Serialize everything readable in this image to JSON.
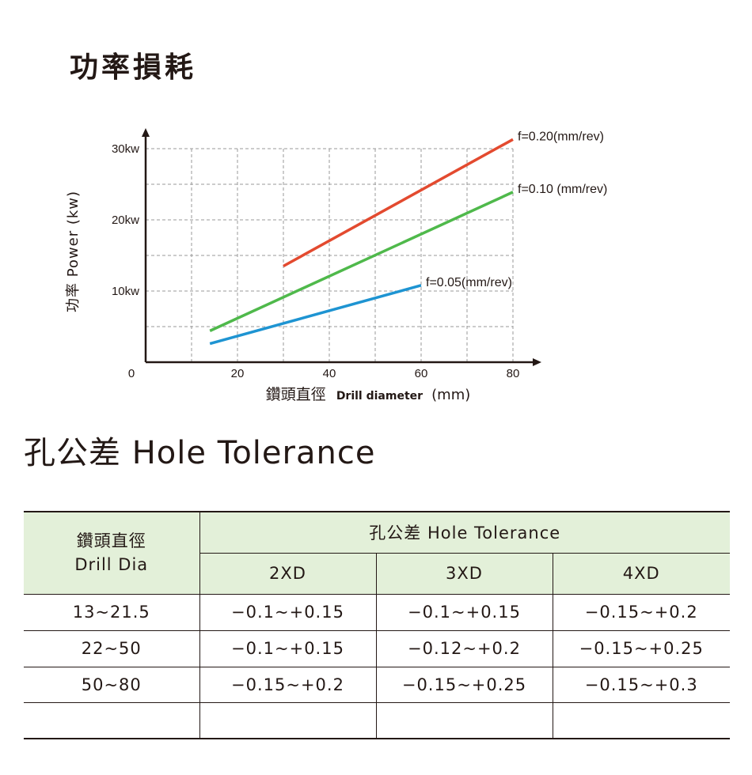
{
  "power_section": {
    "title": "功率損耗"
  },
  "chart_data": {
    "type": "line",
    "ylabel": "功率 Power (kw)",
    "xlabel_parts": [
      "鑽頭直徑",
      "Drill diameter",
      "(mm)"
    ],
    "origin_label": "0",
    "x_ticks": [
      "20",
      "40",
      "60",
      "80"
    ],
    "y_ticks": [
      "10kw",
      "20kw",
      "30kw"
    ],
    "xlim": [
      0,
      80
    ],
    "ylim": [
      0,
      30
    ],
    "grid": true,
    "series": [
      {
        "name": "f=0.20(mm/rev)",
        "color": "#e34a2f",
        "x": [
          30,
          80
        ],
        "y": [
          13.5,
          31.3
        ]
      },
      {
        "name": "f=0.10 (mm/rev)",
        "color": "#4fb94b",
        "x": [
          14,
          80
        ],
        "y": [
          4.4,
          23.9
        ]
      },
      {
        "name": "f=0.05(mm/rev)",
        "color": "#1e94d2",
        "x": [
          14,
          60
        ],
        "y": [
          2.6,
          10.8
        ]
      }
    ]
  },
  "tolerance_section": {
    "title": "孔公差 Hole Tolerance",
    "header": {
      "col1_line1": "鑽頭直徑",
      "col1_line2": "Drill  Dia",
      "group": "孔公差 Hole Tolerance",
      "cols": [
        "2XD",
        "3XD",
        "4XD"
      ]
    },
    "rows": [
      {
        "dia": "13~21.5",
        "v2": "−0.1~+0.15",
        "v3": "−0.1~+0.15",
        "v4": "−0.15~+0.2"
      },
      {
        "dia": "22~50",
        "v2": "−0.1~+0.15",
        "v3": "−0.12~+0.2",
        "v4": "−0.15~+0.25"
      },
      {
        "dia": "50~80",
        "v2": "−0.15~+0.2",
        "v3": "−0.15~+0.25",
        "v4": "−0.15~+0.3"
      },
      {
        "dia": "",
        "v2": "",
        "v3": "",
        "v4": ""
      }
    ]
  }
}
